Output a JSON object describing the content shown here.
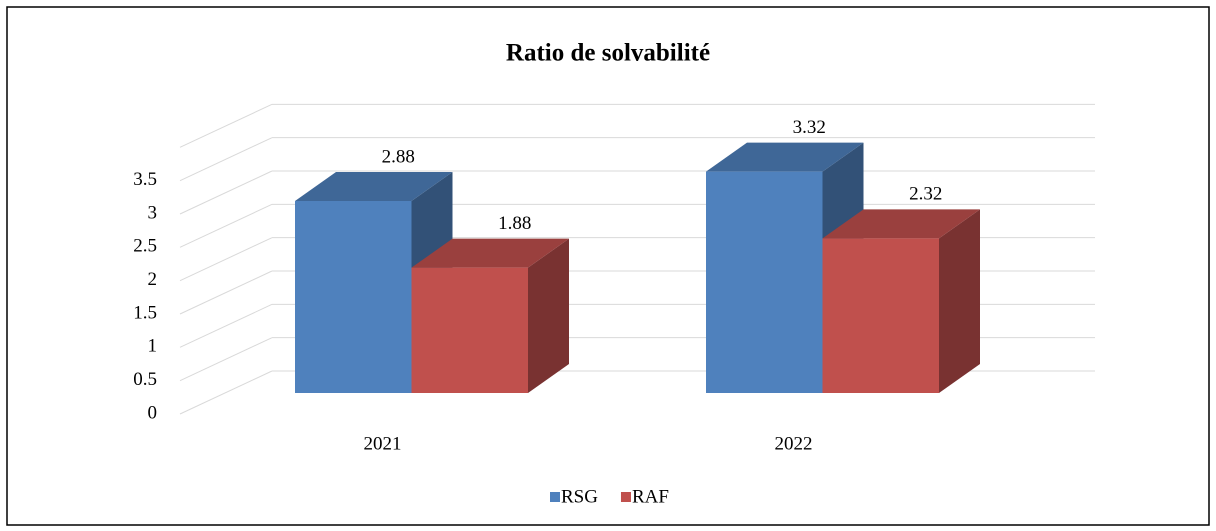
{
  "chart_data": {
    "type": "bar3d",
    "title": "Ratio de solvabilité",
    "categories": [
      "2021",
      "2022"
    ],
    "series": [
      {
        "name": "RSG",
        "color": "#4f81bd",
        "values": [
          2.88,
          3.32
        ]
      },
      {
        "name": "RAF",
        "color": "#c0504d",
        "values": [
          1.88,
          2.32
        ]
      }
    ],
    "ylim": [
      0,
      4
    ],
    "yticks": [
      0,
      0.5,
      1,
      1.5,
      2,
      2.5,
      3,
      3.5
    ],
    "grid": true,
    "legend": "bottom"
  }
}
